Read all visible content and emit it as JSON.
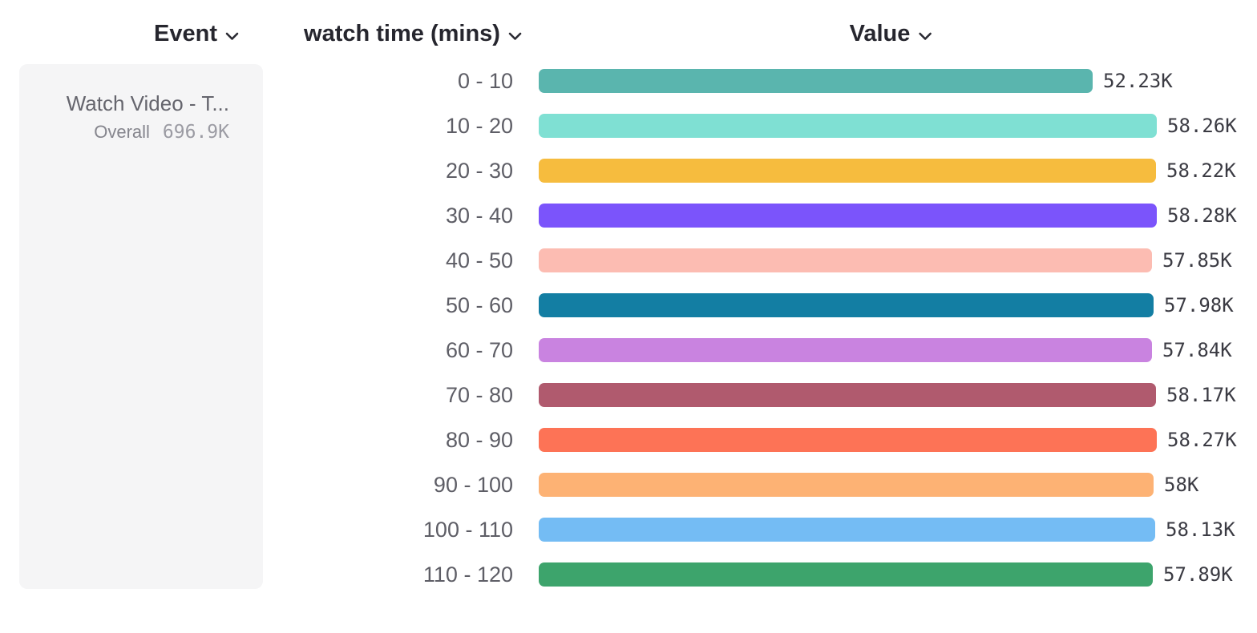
{
  "columns": {
    "event": {
      "label": "Event"
    },
    "breakdown": {
      "label": "watch time (mins)"
    },
    "value": {
      "label": "Value"
    }
  },
  "event_card": {
    "title": "Watch Video - T...",
    "overall_label": "Overall",
    "overall_value": "696.9K"
  },
  "chart_data": {
    "type": "bar",
    "orientation": "horizontal",
    "title": "",
    "xlabel": "Value",
    "ylabel": "watch time (mins)",
    "categories": [
      "0 - 10",
      "10 - 20",
      "20 - 30",
      "30 - 40",
      "40 - 50",
      "50 - 60",
      "60 - 70",
      "70 - 80",
      "80 - 90",
      "90 - 100",
      "100 - 110",
      "110 - 120"
    ],
    "values": [
      52230,
      58260,
      58220,
      58280,
      57850,
      57980,
      57840,
      58170,
      58270,
      58000,
      58130,
      57890
    ],
    "value_labels": [
      "52.23K",
      "58.26K",
      "58.22K",
      "58.28K",
      "57.85K",
      "57.98K",
      "57.84K",
      "58.17K",
      "58.27K",
      "58K",
      "58.13K",
      "57.89K"
    ],
    "bar_colors": [
      "#5ab5ae",
      "#7fe0d3",
      "#f6bc3e",
      "#7b54fb",
      "#fcbcb2",
      "#137ea3",
      "#c983e0",
      "#b05a6e",
      "#fd7356",
      "#fdb274",
      "#74bcf4",
      "#3da46c"
    ],
    "xlim": [
      0,
      58280
    ],
    "grid": false,
    "legend": "none",
    "header_text_color": "#26262e",
    "category_label_color": "#5e5e66",
    "value_label_color": "#3b3b43",
    "card_background": "#f5f5f6"
  }
}
